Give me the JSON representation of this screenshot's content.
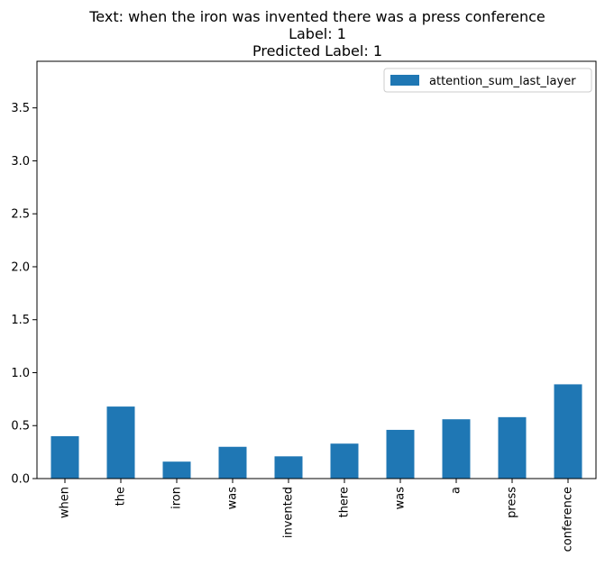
{
  "chart_data": {
    "type": "bar",
    "title_lines": [
      "Text: when the iron was invented there was a press conference",
      "Label: 1",
      "Predicted Label: 1"
    ],
    "categories": [
      "when",
      "the",
      "iron",
      "was",
      "invented",
      "there",
      "was",
      "a",
      "press",
      "conference"
    ],
    "series": [
      {
        "name": "attention_sum_last_layer",
        "values": [
          0.4,
          0.68,
          0.16,
          0.3,
          0.21,
          0.33,
          0.46,
          0.56,
          0.58,
          0.89
        ]
      }
    ],
    "ylim": [
      0,
      3.94
    ],
    "yticks": [
      "0.0",
      "0.5",
      "1.0",
      "1.5",
      "2.0",
      "2.5",
      "3.0",
      "3.5"
    ],
    "bar_color": "#1f77b4",
    "legend_position": "top-right",
    "grid": false
  }
}
